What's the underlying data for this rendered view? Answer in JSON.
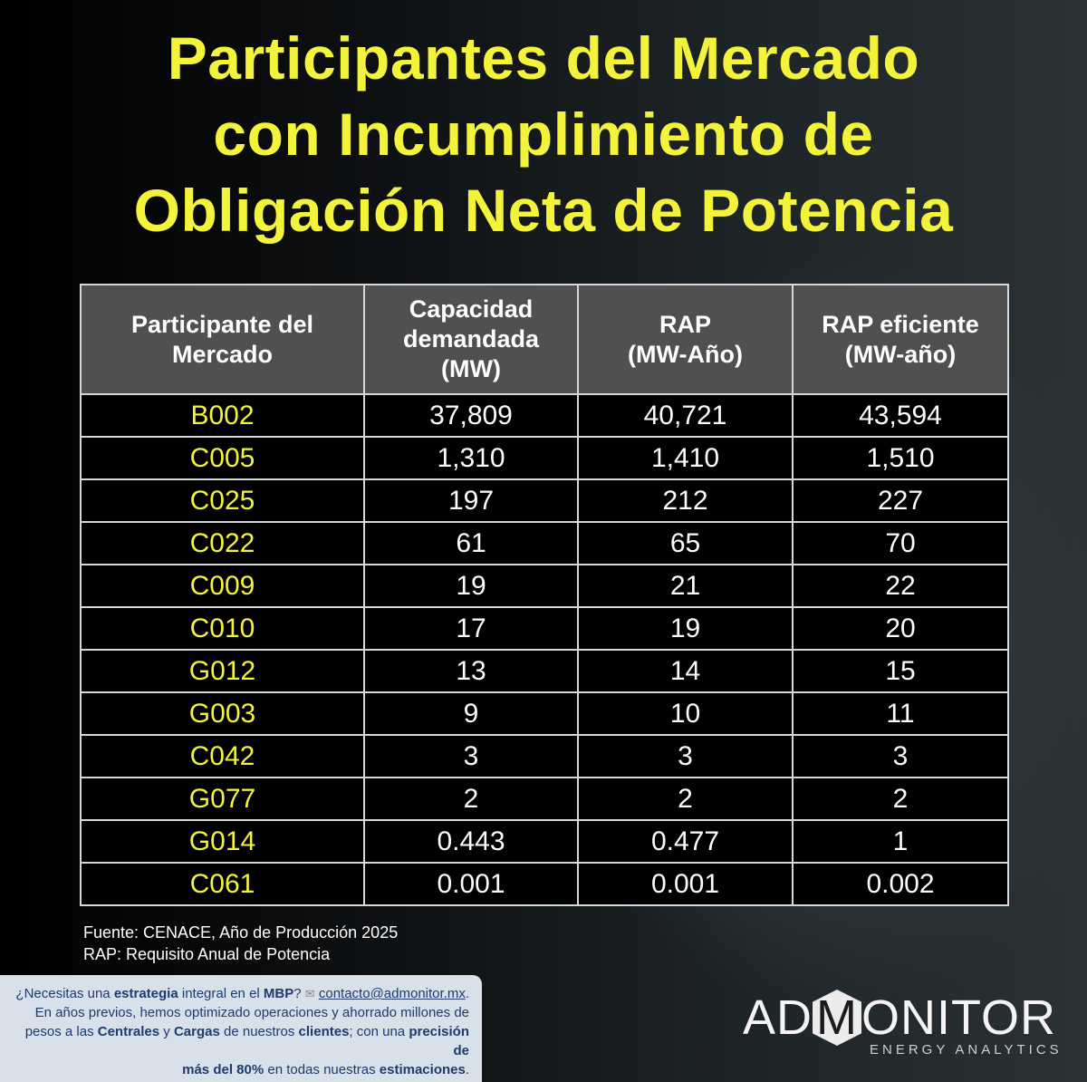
{
  "title_lines": [
    "Participantes del Mercado",
    "con Incumplimiento de",
    "Obligación Neta de Potencia"
  ],
  "table": {
    "headers": [
      [
        "Participante del",
        "Mercado"
      ],
      [
        "Capacidad",
        "demandada",
        "(MW)"
      ],
      [
        "RAP",
        "(MW-Año)"
      ],
      [
        "RAP eficiente",
        "(MW-año)"
      ]
    ],
    "rows": [
      [
        "B002",
        "37,809",
        "40,721",
        "43,594"
      ],
      [
        "C005",
        "1,310",
        "1,410",
        "1,510"
      ],
      [
        "C025",
        "197",
        "212",
        "227"
      ],
      [
        "C022",
        "61",
        "65",
        "70"
      ],
      [
        "C009",
        "19",
        "21",
        "22"
      ],
      [
        "C010",
        "17",
        "19",
        "20"
      ],
      [
        "G012",
        "13",
        "14",
        "15"
      ],
      [
        "G003",
        "9",
        "10",
        "11"
      ],
      [
        "C042",
        "3",
        "3",
        "3"
      ],
      [
        "G077",
        "2",
        "2",
        "2"
      ],
      [
        "G014",
        "0.443",
        "0.477",
        "1"
      ],
      [
        "C061",
        "0.001",
        "0.001",
        "0.002"
      ]
    ]
  },
  "notes": [
    "Fuente: CENACE, Año de Producción 2025",
    "RAP: Requisito Anual de Potencia"
  ],
  "promo": {
    "q_prefix": "¿Necesitas una ",
    "q_bold1": "estrategia",
    "q_mid": " integral en el ",
    "q_bold2": "MBP",
    "q_suffix": "? ",
    "icon": "envelope-icon",
    "email": "contacto@admonitor.mx",
    "email_suffix": ".",
    "l2": "En años previos, hemos optimizado operaciones y ahorrado millones de",
    "l3_a": "pesos a las ",
    "l3_b": "Centrales",
    "l3_c": " y ",
    "l3_d": "Cargas",
    "l3_e": " de nuestros ",
    "l3_f": "clientes",
    "l3_g": "; con una ",
    "l3_h": "precisión de",
    "l4_a": "más del 80%",
    "l4_b": " en todas nuestras ",
    "l4_c": "estimaciones",
    "l4_d": "."
  },
  "logo": {
    "pre": "AD",
    "mid": "M",
    "post": "ONITOR",
    "sub": "ENERGY ANALYTICS"
  },
  "colors": {
    "title": "#f3f33b",
    "header_bg": "#505050",
    "id_text": "#f3f33b",
    "promo_bg": "#d8e0ea",
    "promo_text": "#1f3b6e"
  }
}
